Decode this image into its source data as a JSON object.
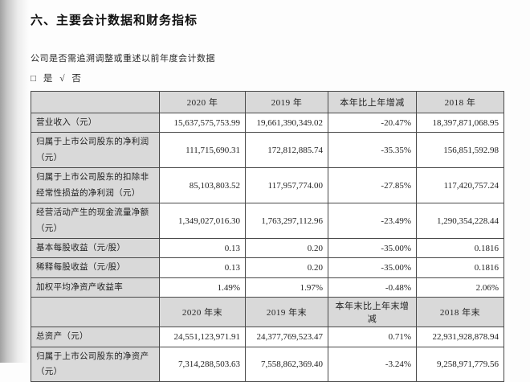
{
  "document": {
    "title": "六、主要会计数据和财务指标",
    "question": "公司是否需追溯调整或重述以前年度会计数据",
    "choice": "□ 是 √ 否"
  },
  "colors": {
    "cell_gray": "#d9d9d9",
    "border": "#4a4a4a",
    "text": "#1f1f1f"
  },
  "table": {
    "sections": [
      {
        "header": [
          "",
          "2020 年",
          "2019 年",
          "本年比上年增减",
          "2018 年"
        ],
        "rows": [
          {
            "label": "营业收入（元）",
            "values": [
              "15,637,575,753.99",
              "19,661,390,349.02",
              "-20.47%",
              "18,397,871,068.95"
            ]
          },
          {
            "label": "归属于上市公司股东的净利润（元）",
            "values": [
              "111,715,690.31",
              "172,812,885.74",
              "-35.35%",
              "156,851,592.98"
            ]
          },
          {
            "label": "归属于上市公司股东的扣除非经常性损益的净利润（元）",
            "values": [
              "85,103,803.52",
              "117,957,774.00",
              "-27.85%",
              "117,420,757.24"
            ]
          },
          {
            "label": "经营活动产生的现金流量净额（元）",
            "values": [
              "1,349,027,016.30",
              "1,763,297,112.96",
              "-23.49%",
              "1,290,354,228.44"
            ]
          },
          {
            "label": "基本每股收益（元/股）",
            "values": [
              "0.13",
              "0.20",
              "-35.00%",
              "0.1816"
            ]
          },
          {
            "label": "稀释每股收益（元/股）",
            "values": [
              "0.13",
              "0.20",
              "-35.00%",
              "0.1816"
            ]
          },
          {
            "label": "加权平均净资产收益率",
            "values": [
              "1.49%",
              "1.97%",
              "-0.48%",
              "2.06%"
            ]
          }
        ]
      },
      {
        "header": [
          "",
          "2020 年末",
          "2019 年末",
          "本年末比上年末增减",
          "2018 年末"
        ],
        "rows": [
          {
            "label": "总资产（元）",
            "values": [
              "24,551,123,971.91",
              "24,377,769,523.47",
              "0.71%",
              "22,931,928,878.94"
            ]
          },
          {
            "label": "归属于上市公司股东的净资产（元）",
            "values": [
              "7,314,288,503.63",
              "7,558,862,369.40",
              "-3.24%",
              "9,258,971,779.56"
            ]
          }
        ]
      }
    ]
  }
}
